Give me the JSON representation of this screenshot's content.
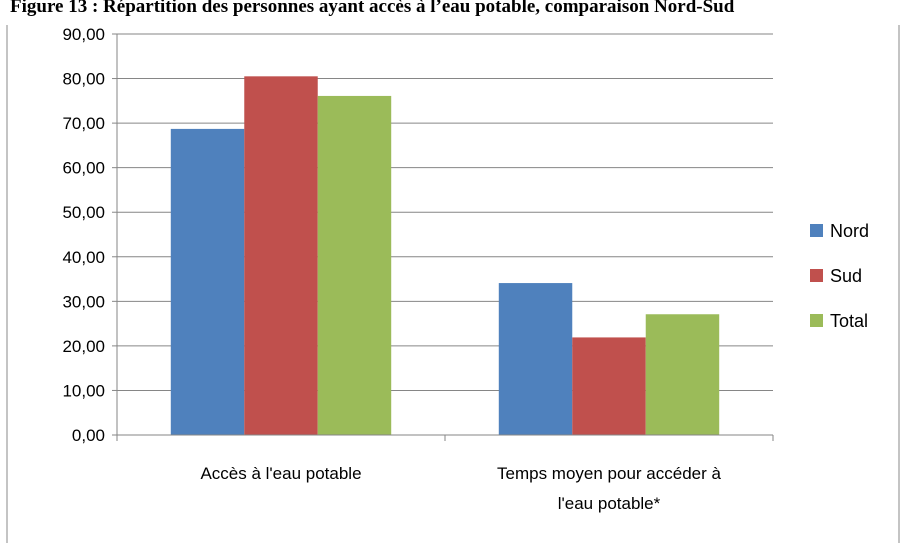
{
  "chart_data": {
    "type": "bar",
    "title": "Figure 13 : Répartition des personnes ayant accès à l’eau potable, comparaison Nord-Sud",
    "categories": [
      [
        "Accès à l'eau potable"
      ],
      [
        "Temps moyen pour accéder à",
        "l'eau potable*"
      ]
    ],
    "series": [
      {
        "name": "Nord",
        "color": "#4F81BD",
        "values": [
          68.7,
          34.1
        ]
      },
      {
        "name": "Sud",
        "color": "#C0504D",
        "values": [
          80.5,
          21.9
        ]
      },
      {
        "name": "Total",
        "color": "#9BBB59",
        "values": [
          76.1,
          27.1
        ]
      }
    ],
    "ylim": [
      0,
      90
    ],
    "yticks": [
      "0,00",
      "10,00",
      "20,00",
      "30,00",
      "40,00",
      "50,00",
      "60,00",
      "70,00",
      "80,00",
      "90,00"
    ],
    "grid": true,
    "legend_position": "right"
  }
}
